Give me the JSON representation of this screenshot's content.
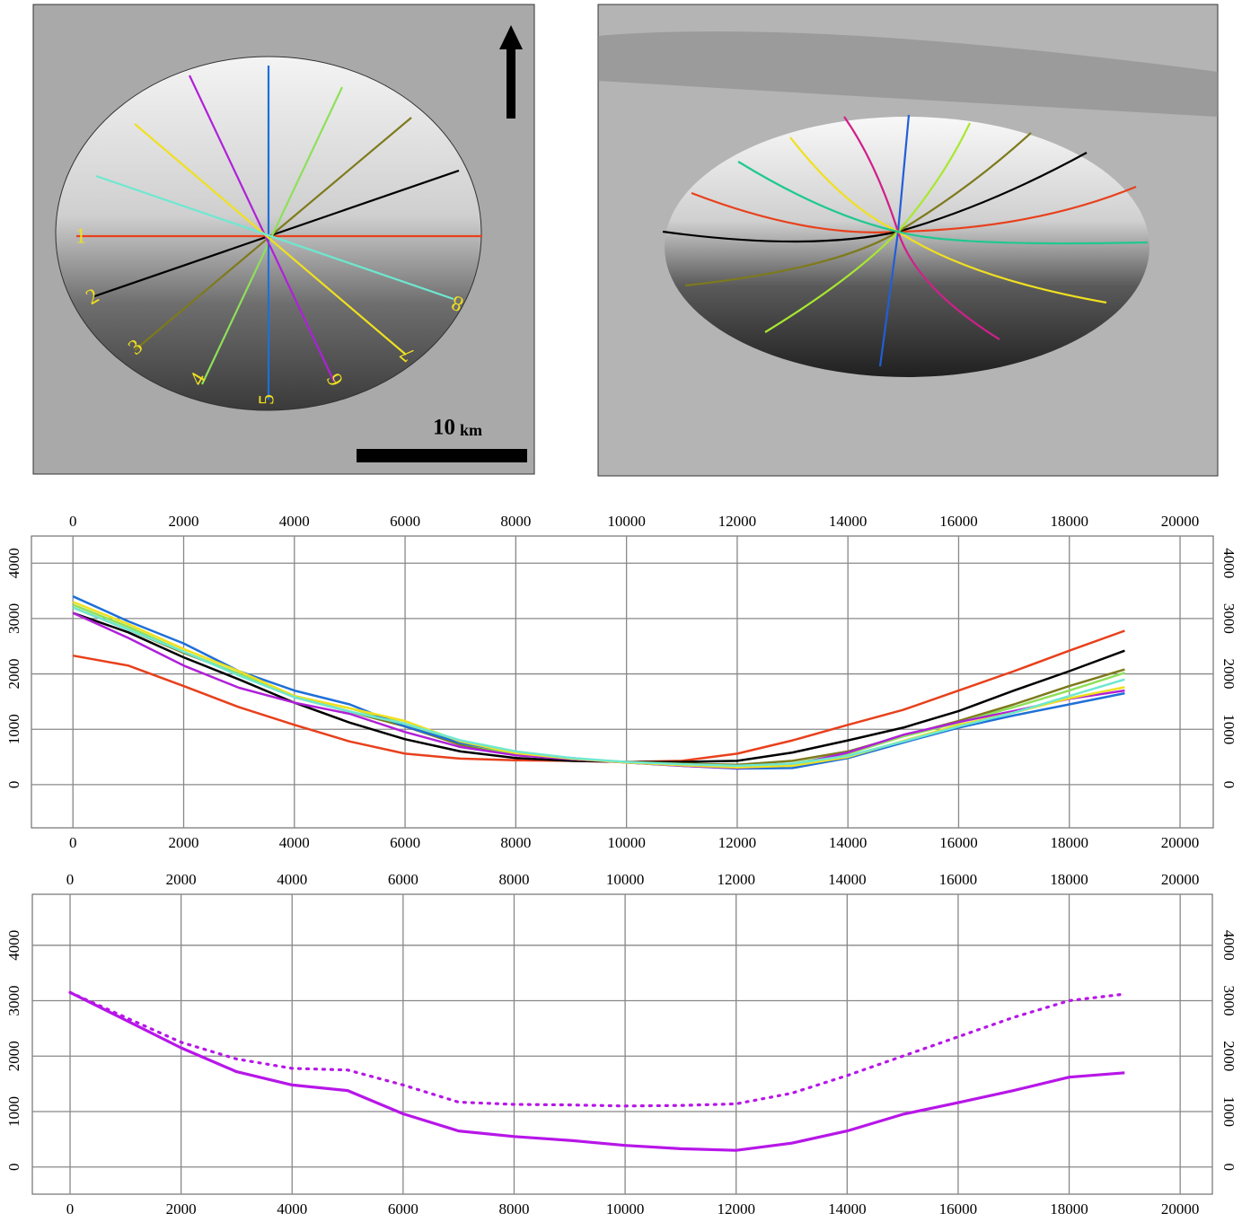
{
  "images": {
    "left_map": {
      "labels": [
        "1",
        "2",
        "3",
        "4",
        "5",
        "6",
        "7",
        "8"
      ],
      "scale_value": "10",
      "scale_unit": "km"
    }
  },
  "chart_data": [
    {
      "type": "line",
      "grid": true,
      "xlim": [
        -750,
        20600
      ],
      "ylim": [
        -780,
        4490
      ],
      "xticks": [
        0,
        2000,
        4000,
        6000,
        8000,
        10000,
        12000,
        14000,
        16000,
        18000,
        20000
      ],
      "yticks": [
        0,
        1000,
        2000,
        3000,
        4000
      ],
      "x": [
        0,
        1000,
        2000,
        3000,
        4000,
        5000,
        6000,
        7000,
        8000,
        9000,
        10000,
        11000,
        12000,
        13000,
        14000,
        15000,
        16000,
        17000,
        18000,
        19000,
        20000
      ],
      "series": [
        {
          "color": "#e8401c",
          "values": [
            2330,
            2150,
            1780,
            1400,
            1080,
            780,
            560,
            470,
            440,
            430,
            410,
            430,
            560,
            800,
            1080,
            1350,
            1700,
            2050,
            2420,
            2780,
            null
          ]
        },
        {
          "color": "#000000",
          "values": [
            3100,
            2750,
            2300,
            1900,
            1480,
            1120,
            820,
            600,
            480,
            430,
            410,
            410,
            430,
            580,
            800,
            1030,
            1330,
            1700,
            2050,
            2420,
            null
          ]
        },
        {
          "color": "#7d7a1c",
          "values": [
            3200,
            2800,
            2380,
            2000,
            1580,
            1320,
            1050,
            720,
            560,
            460,
            410,
            380,
            360,
            430,
            600,
            880,
            1150,
            1450,
            1780,
            2080,
            null
          ]
        },
        {
          "color": "#8ee05a",
          "values": [
            3250,
            2850,
            2400,
            2000,
            1600,
            1380,
            1100,
            750,
            560,
            460,
            410,
            360,
            330,
            380,
            560,
            870,
            1120,
            1400,
            1700,
            2020,
            null
          ]
        },
        {
          "color": "#1f6fd8",
          "values": [
            3400,
            2950,
            2550,
            2050,
            1700,
            1450,
            1050,
            750,
            590,
            480,
            400,
            340,
            290,
            300,
            480,
            760,
            1030,
            1250,
            1450,
            1650,
            null
          ]
        },
        {
          "color": "#b020d8",
          "values": [
            3100,
            2650,
            2150,
            1750,
            1480,
            1280,
            950,
            680,
            530,
            460,
            400,
            340,
            300,
            350,
            580,
            900,
            1130,
            1330,
            1550,
            1700,
            null
          ]
        },
        {
          "color": "#f0e020",
          "values": [
            3300,
            2900,
            2450,
            2050,
            1600,
            1380,
            1150,
            780,
            570,
            470,
            400,
            350,
            310,
            340,
            500,
            790,
            1080,
            1300,
            1560,
            1760,
            null
          ]
        },
        {
          "color": "#6ee8d0",
          "values": [
            3200,
            2800,
            2400,
            1970,
            1580,
            1320,
            1100,
            800,
            600,
            480,
            410,
            370,
            340,
            380,
            520,
            780,
            1050,
            1300,
            1600,
            1900,
            null
          ]
        }
      ]
    },
    {
      "type": "line",
      "grid": true,
      "xlim": [
        -680,
        20580
      ],
      "ylim": [
        -490,
        4920
      ],
      "xticks": [
        0,
        2000,
        4000,
        6000,
        8000,
        10000,
        12000,
        14000,
        16000,
        18000,
        20000
      ],
      "yticks": [
        0,
        1000,
        2000,
        3000,
        4000
      ],
      "x": [
        0,
        1000,
        2000,
        3000,
        4000,
        5000,
        6000,
        7000,
        8000,
        9000,
        10000,
        11000,
        12000,
        13000,
        14000,
        15000,
        16000,
        17000,
        18000,
        19000
      ],
      "series": [
        {
          "color": "#b716e8",
          "style": "solid",
          "values": [
            3150,
            2650,
            2150,
            1720,
            1480,
            1380,
            960,
            650,
            550,
            480,
            390,
            330,
            300,
            430,
            650,
            950,
            1160,
            1380,
            1620,
            1700
          ]
        },
        {
          "color": "#b716e8",
          "style": "dotted",
          "values": [
            3150,
            2700,
            2250,
            1950,
            1780,
            1750,
            1480,
            1170,
            1130,
            1120,
            1100,
            1110,
            1140,
            1330,
            1650,
            2000,
            2350,
            2700,
            3000,
            3120
          ]
        }
      ]
    }
  ]
}
